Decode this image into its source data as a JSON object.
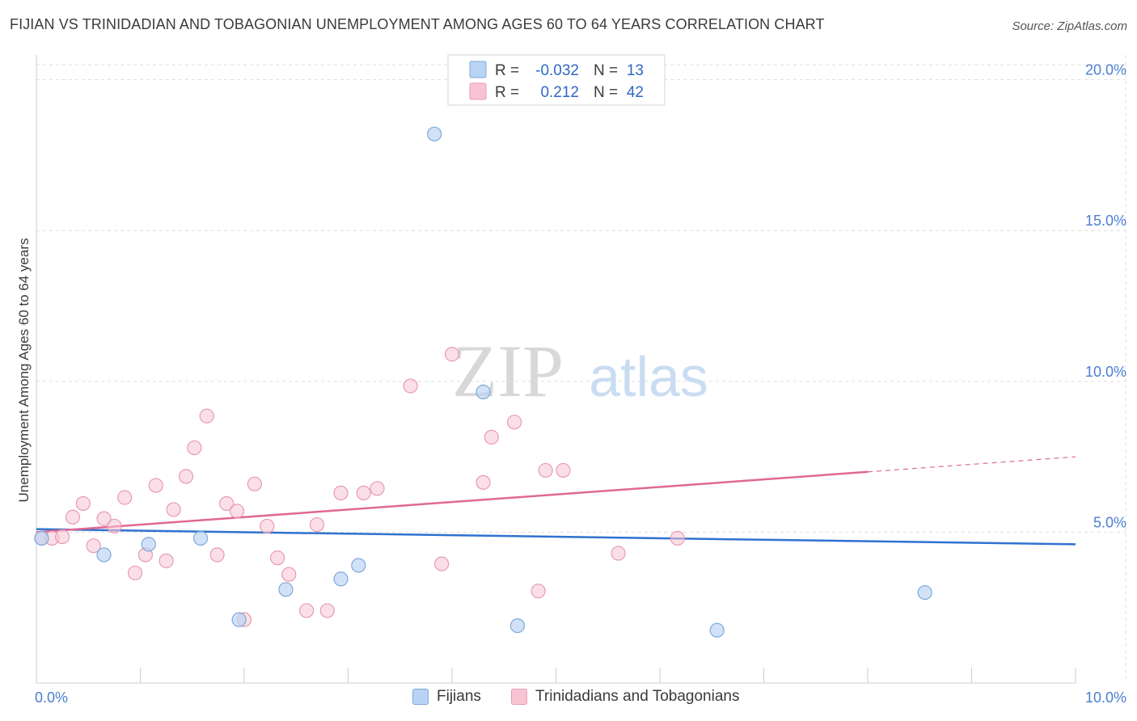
{
  "title": "FIJIAN VS TRINIDADIAN AND TOBAGONIAN UNEMPLOYMENT AMONG AGES 60 TO 64 YEARS CORRELATION CHART",
  "source": "Source: ZipAtlas.com",
  "watermark": {
    "zip": "ZIP",
    "atlas": "atlas"
  },
  "legend_box": [
    {
      "r_label": "R =",
      "r_value": "-0.032",
      "n_label": "N =",
      "n_value": "13"
    },
    {
      "r_label": "R =",
      "r_value": "0.212",
      "n_label": "N =",
      "n_value": "42"
    }
  ],
  "bottom_legend": {
    "fijians": "Fijians",
    "trinidadians": "Trinidadians and Tobagonians"
  },
  "colors": {
    "fijian_fill": "#b8d3f4",
    "fijian_stroke": "#7fa8d8",
    "fijian_line": "#2f72d0",
    "trini_fill": "#f8c4d4",
    "trini_stroke": "#e89ab4",
    "trini_line": "#e06892",
    "tick_label": "#4a7fd0",
    "grid": "#dddddd"
  },
  "chart_data": {
    "type": "scatter",
    "title": "FIJIAN VS TRINIDADIAN AND TOBAGONIAN UNEMPLOYMENT AMONG AGES 60 TO 64 YEARS CORRELATION CHART",
    "xlabel": "",
    "ylabel": "Unemployment Among Ages 60 to 64 years",
    "xlim": [
      0,
      10
    ],
    "ylim": [
      0,
      20.5
    ],
    "x_tick_labels": [
      {
        "value": 0,
        "label": "0.0%"
      },
      {
        "value": 10,
        "label": "10.0%"
      }
    ],
    "y_tick_labels": [
      {
        "value": 5,
        "label": "5.0%"
      },
      {
        "value": 10,
        "label": "10.0%"
      },
      {
        "value": 15,
        "label": "15.0%"
      },
      {
        "value": 20,
        "label": "20.0%"
      }
    ],
    "series": [
      {
        "name": "Fijians",
        "r": -0.032,
        "n": 13,
        "trend": {
          "x": [
            0,
            10
          ],
          "y": [
            5.1,
            4.6
          ]
        },
        "points": [
          {
            "x": 0.05,
            "y": 4.8
          },
          {
            "x": 0.65,
            "y": 4.25
          },
          {
            "x": 1.08,
            "y": 4.6
          },
          {
            "x": 1.58,
            "y": 4.8
          },
          {
            "x": 1.95,
            "y": 2.1
          },
          {
            "x": 2.4,
            "y": 3.1
          },
          {
            "x": 2.93,
            "y": 3.45
          },
          {
            "x": 3.1,
            "y": 3.9
          },
          {
            "x": 3.83,
            "y": 18.2
          },
          {
            "x": 4.3,
            "y": 9.65
          },
          {
            "x": 4.63,
            "y": 1.9
          },
          {
            "x": 6.55,
            "y": 1.75
          },
          {
            "x": 8.55,
            "y": 3.0
          }
        ]
      },
      {
        "name": "Trinidadians and Tobagonians",
        "r": 0.212,
        "n": 42,
        "trend": {
          "x": [
            0,
            10
          ],
          "y": [
            5.0,
            7.5
          ],
          "solid_until_x": 8.0
        },
        "points": [
          {
            "x": 0.05,
            "y": 4.8
          },
          {
            "x": 0.15,
            "y": 4.8
          },
          {
            "x": 0.25,
            "y": 4.85
          },
          {
            "x": 0.35,
            "y": 5.5
          },
          {
            "x": 0.45,
            "y": 5.95
          },
          {
            "x": 0.55,
            "y": 4.55
          },
          {
            "x": 0.65,
            "y": 5.45
          },
          {
            "x": 0.75,
            "y": 5.2
          },
          {
            "x": 0.85,
            "y": 6.15
          },
          {
            "x": 0.95,
            "y": 3.65
          },
          {
            "x": 1.05,
            "y": 4.25
          },
          {
            "x": 1.15,
            "y": 6.55
          },
          {
            "x": 1.25,
            "y": 4.05
          },
          {
            "x": 1.32,
            "y": 5.75
          },
          {
            "x": 1.44,
            "y": 6.85
          },
          {
            "x": 1.52,
            "y": 7.8
          },
          {
            "x": 1.64,
            "y": 8.85
          },
          {
            "x": 1.74,
            "y": 4.25
          },
          {
            "x": 1.83,
            "y": 5.95
          },
          {
            "x": 1.93,
            "y": 5.7
          },
          {
            "x": 2.0,
            "y": 2.1
          },
          {
            "x": 2.1,
            "y": 6.6
          },
          {
            "x": 2.22,
            "y": 5.2
          },
          {
            "x": 2.32,
            "y": 4.15
          },
          {
            "x": 2.43,
            "y": 3.6
          },
          {
            "x": 2.6,
            "y": 2.4
          },
          {
            "x": 2.7,
            "y": 5.25
          },
          {
            "x": 2.8,
            "y": 2.4
          },
          {
            "x": 2.93,
            "y": 6.3
          },
          {
            "x": 3.15,
            "y": 6.3
          },
          {
            "x": 3.28,
            "y": 6.45
          },
          {
            "x": 3.6,
            "y": 9.85
          },
          {
            "x": 3.9,
            "y": 3.95
          },
          {
            "x": 4.0,
            "y": 10.9
          },
          {
            "x": 4.3,
            "y": 6.65
          },
          {
            "x": 4.38,
            "y": 8.15
          },
          {
            "x": 4.6,
            "y": 8.65
          },
          {
            "x": 4.83,
            "y": 3.05
          },
          {
            "x": 4.9,
            "y": 7.05
          },
          {
            "x": 5.07,
            "y": 7.05
          },
          {
            "x": 5.6,
            "y": 4.3
          },
          {
            "x": 6.17,
            "y": 4.8
          }
        ]
      }
    ]
  }
}
